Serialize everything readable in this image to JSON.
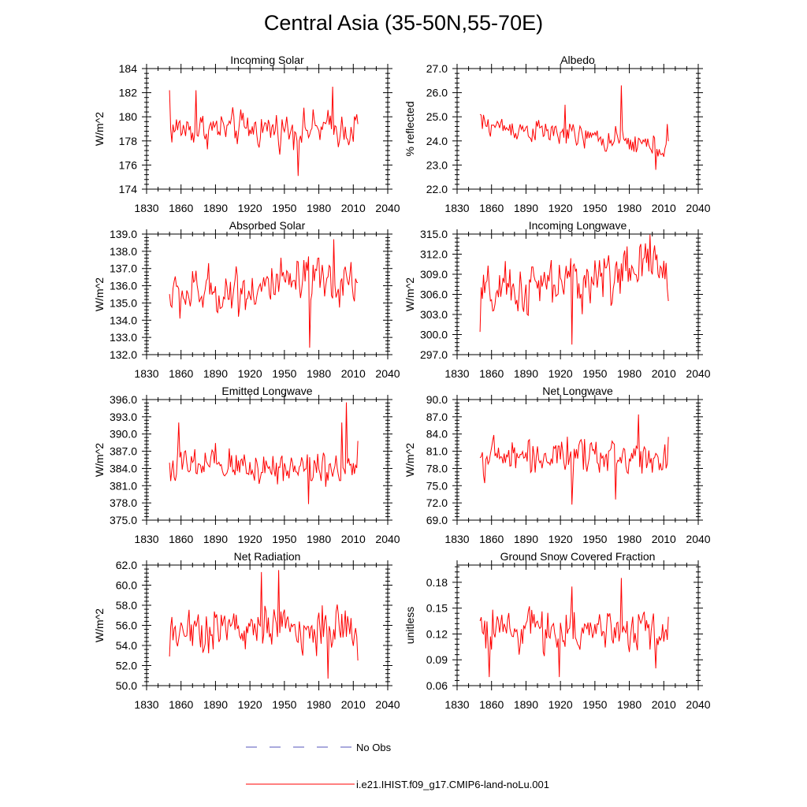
{
  "title": "Central Asia (35-50N,55-70E)",
  "colors": {
    "model": "#ff0000",
    "obs": "#5555bb",
    "axis": "#000000"
  },
  "legend": {
    "items": [
      {
        "label": "No Obs",
        "style": "dashed",
        "color": "#5555bb"
      },
      {
        "label": "i.e21.IHIST.f09_g17.CMIP6-land-noLu.001",
        "style": "solid",
        "color": "#ff0000"
      }
    ]
  },
  "chart_data": [
    {
      "type": "line",
      "title": "Incoming Solar",
      "ylabel": "W/m^2",
      "xlim": [
        1830,
        2040
      ],
      "ylim": [
        174,
        184
      ],
      "xticks": [
        1830,
        1860,
        1890,
        1920,
        1950,
        1980,
        2010,
        2040
      ],
      "xtick_labels": [
        "1830",
        "1860",
        "1890",
        "1920",
        "1950",
        "1980",
        "2010",
        "2040"
      ],
      "yticks": [
        174,
        176,
        178,
        180,
        182,
        184
      ],
      "ytick_labels": [
        "174",
        "176",
        "178",
        "180",
        "182",
        "184"
      ],
      "series": [
        {
          "start_year": 1850,
          "end_year": 2014,
          "values": []
        }
      ],
      "profile": {
        "mean": 179.0,
        "amp": 1.3,
        "trend": 0.0,
        "spikes": [
          [
            1850,
            182.2
          ],
          [
            1873,
            182.2
          ],
          [
            1962,
            175.1
          ],
          [
            1992,
            182.5
          ],
          [
            2013,
            180.2
          ]
        ]
      }
    },
    {
      "type": "line",
      "title": "Albedo",
      "ylabel": "% reflected",
      "xlim": [
        1830,
        2040
      ],
      "ylim": [
        22.0,
        27.0
      ],
      "xticks": [
        1830,
        1860,
        1890,
        1920,
        1950,
        1980,
        2010,
        2040
      ],
      "xtick_labels": [
        "1830",
        "1860",
        "1890",
        "1920",
        "1950",
        "1980",
        "2010",
        "2040"
      ],
      "yticks": [
        22.0,
        23.0,
        24.0,
        25.0,
        26.0,
        27.0
      ],
      "ytick_labels": [
        "22.0",
        "23.0",
        "24.0",
        "25.0",
        "26.0",
        "27.0"
      ],
      "series": [
        {
          "start_year": 1850,
          "end_year": 2014,
          "values": []
        }
      ],
      "profile": {
        "mean": 24.7,
        "amp": 0.45,
        "trend": -0.006,
        "spikes": [
          [
            1850,
            25.1
          ],
          [
            1924,
            25.5
          ],
          [
            1973,
            26.3
          ],
          [
            2003,
            22.8
          ],
          [
            2013,
            24.7
          ]
        ]
      }
    },
    {
      "type": "line",
      "title": "Absorbed Solar",
      "ylabel": "W/m^2",
      "xlim": [
        1830,
        2040
      ],
      "ylim": [
        132.0,
        139.0
      ],
      "xticks": [
        1830,
        1860,
        1890,
        1920,
        1950,
        1980,
        2010,
        2040
      ],
      "xtick_labels": [
        "1830",
        "1860",
        "1890",
        "1920",
        "1950",
        "1980",
        "2010",
        "2040"
      ],
      "yticks": [
        132.0,
        133.0,
        134.0,
        135.0,
        136.0,
        137.0,
        138.0,
        139.0
      ],
      "ytick_labels": [
        "132.0",
        "133.0",
        "134.0",
        "135.0",
        "136.0",
        "137.0",
        "138.0",
        "139.0"
      ],
      "series": [
        {
          "start_year": 1850,
          "end_year": 2014,
          "values": []
        }
      ],
      "profile": {
        "mean": 135.4,
        "amp": 1.3,
        "trend": 0.006,
        "spikes": [
          [
            1972,
            132.4
          ],
          [
            1993,
            138.7
          ],
          [
            2013,
            136.2
          ]
        ]
      }
    },
    {
      "type": "line",
      "title": "Incoming Longwave",
      "ylabel": "W/m^2",
      "xlim": [
        1830,
        2040
      ],
      "ylim": [
        297.0,
        315.0
      ],
      "xticks": [
        1830,
        1860,
        1890,
        1920,
        1950,
        1980,
        2010,
        2040
      ],
      "xtick_labels": [
        "1830",
        "1860",
        "1890",
        "1920",
        "1950",
        "1980",
        "2010",
        "2040"
      ],
      "yticks": [
        297.0,
        300.0,
        303.0,
        306.0,
        309.0,
        312.0,
        315.0
      ],
      "ytick_labels": [
        "297.0",
        "300.0",
        "303.0",
        "306.0",
        "309.0",
        "312.0",
        "315.0"
      ],
      "series": [
        {
          "start_year": 1850,
          "end_year": 2014,
          "values": []
        }
      ],
      "profile": {
        "mean": 305.5,
        "amp": 3.6,
        "trend": 0.03,
        "spikes": [
          [
            1850,
            300.4
          ],
          [
            1930,
            298.5
          ],
          [
            1998,
            315.0
          ],
          [
            2014,
            305.0
          ]
        ]
      }
    },
    {
      "type": "line",
      "title": "Emitted Longwave",
      "ylabel": "W/m^2",
      "xlim": [
        1830,
        2040
      ],
      "ylim": [
        375.0,
        396.0
      ],
      "xticks": [
        1830,
        1860,
        1890,
        1920,
        1950,
        1980,
        2010,
        2040
      ],
      "xtick_labels": [
        "1830",
        "1860",
        "1890",
        "1920",
        "1950",
        "1980",
        "2010",
        "2040"
      ],
      "yticks": [
        375.0,
        378.0,
        381.0,
        384.0,
        387.0,
        390.0,
        393.0,
        396.0
      ],
      "ytick_labels": [
        "375.0",
        "378.0",
        "381.0",
        "384.0",
        "387.0",
        "390.0",
        "393.0",
        "396.0"
      ],
      "series": [
        {
          "start_year": 1850,
          "end_year": 2014,
          "values": []
        }
      ],
      "profile": {
        "mean": 384.3,
        "amp": 3.0,
        "trend": 0.0,
        "spikes": [
          [
            1850,
            385.0
          ],
          [
            1858,
            392.0
          ],
          [
            1971,
            377.8
          ],
          [
            2000,
            392.0
          ],
          [
            2004,
            395.5
          ],
          [
            2014,
            388.8
          ]
        ]
      }
    },
    {
      "type": "line",
      "title": "Net Longwave",
      "ylabel": "W/m^2",
      "xlim": [
        1830,
        2040
      ],
      "ylim": [
        69.0,
        90.0
      ],
      "xticks": [
        1830,
        1860,
        1890,
        1920,
        1950,
        1980,
        2010,
        2040
      ],
      "xtick_labels": [
        "1830",
        "1860",
        "1890",
        "1920",
        "1950",
        "1980",
        "2010",
        "2040"
      ],
      "yticks": [
        69.0,
        72.0,
        75.0,
        78.0,
        81.0,
        84.0,
        87.0,
        90.0
      ],
      "ytick_labels": [
        "69.0",
        "72.0",
        "75.0",
        "78.0",
        "81.0",
        "84.0",
        "87.0",
        "90.0"
      ],
      "series": [
        {
          "start_year": 1850,
          "end_year": 2014,
          "values": []
        }
      ],
      "profile": {
        "mean": 80.0,
        "amp": 2.8,
        "trend": 0.0,
        "spikes": [
          [
            1930,
            71.7
          ],
          [
            1968,
            72.6
          ],
          [
            1988,
            87.4
          ],
          [
            2014,
            83.5
          ]
        ]
      }
    },
    {
      "type": "line",
      "title": "Net Radiation",
      "ylabel": "W/m^2",
      "xlim": [
        1830,
        2040
      ],
      "ylim": [
        50.0,
        62.0
      ],
      "xticks": [
        1830,
        1860,
        1890,
        1920,
        1950,
        1980,
        2010,
        2040
      ],
      "xtick_labels": [
        "1830",
        "1860",
        "1890",
        "1920",
        "1950",
        "1980",
        "2010",
        "2040"
      ],
      "yticks": [
        50.0,
        52.0,
        54.0,
        56.0,
        58.0,
        60.0,
        62.0
      ],
      "ytick_labels": [
        "50.0",
        "52.0",
        "54.0",
        "56.0",
        "58.0",
        "60.0",
        "62.0"
      ],
      "series": [
        {
          "start_year": 1850,
          "end_year": 2014,
          "values": []
        }
      ],
      "profile": {
        "mean": 55.7,
        "amp": 2.1,
        "trend": 0.0,
        "spikes": [
          [
            1850,
            52.9
          ],
          [
            1930,
            61.3
          ],
          [
            1945,
            61.5
          ],
          [
            1988,
            50.7
          ],
          [
            2014,
            52.5
          ]
        ]
      }
    },
    {
      "type": "line",
      "title": "Ground Snow Covered Fraction",
      "ylabel": "unitless",
      "xlim": [
        1830,
        2040
      ],
      "ylim": [
        0.06,
        0.2
      ],
      "xticks": [
        1830,
        1860,
        1890,
        1920,
        1950,
        1980,
        2010,
        2040
      ],
      "xtick_labels": [
        "1830",
        "1860",
        "1890",
        "1920",
        "1950",
        "1980",
        "2010",
        "2040"
      ],
      "yticks": [
        0.06,
        0.09,
        0.12,
        0.15,
        0.18
      ],
      "ytick_labels": [
        "0.06",
        "0.09",
        "0.12",
        "0.15",
        "0.18"
      ],
      "series": [
        {
          "start_year": 1850,
          "end_year": 2014,
          "values": []
        }
      ],
      "profile": {
        "mean": 0.125,
        "amp": 0.022,
        "trend": 0.0,
        "spikes": [
          [
            1850,
            0.135
          ],
          [
            1858,
            0.07
          ],
          [
            1919,
            0.07
          ],
          [
            1930,
            0.175
          ],
          [
            1973,
            0.185
          ],
          [
            2003,
            0.08
          ],
          [
            2014,
            0.14
          ]
        ]
      }
    }
  ]
}
